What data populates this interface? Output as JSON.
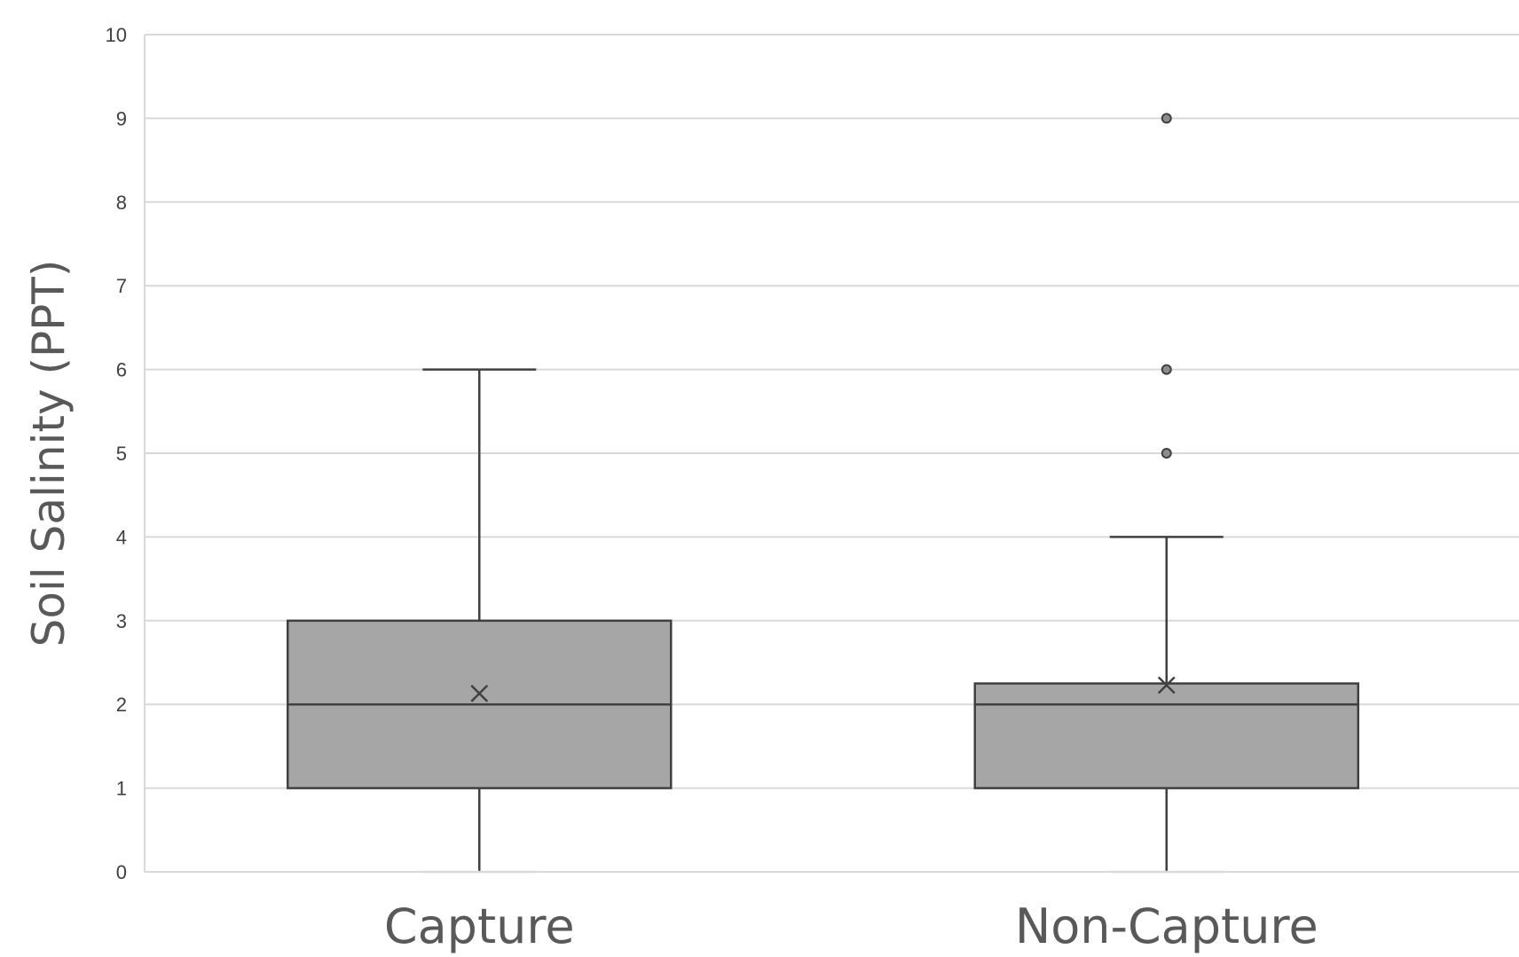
{
  "chart_data": {
    "type": "box",
    "ylabel": "Soil Salinity (PPT)",
    "xlabel": "",
    "ylim": [
      0,
      10
    ],
    "yticks": [
      "0",
      "1",
      "2",
      "3",
      "4",
      "5",
      "6",
      "7",
      "8",
      "9",
      "10"
    ],
    "grid": true,
    "categories": [
      "Capture",
      "Non-Capture"
    ],
    "boxes": [
      {
        "category": "Capture",
        "whisker_low": 0,
        "q1": 1,
        "median": 2,
        "q3": 3,
        "whisker_high": 6,
        "mean": 2.13,
        "outliers": []
      },
      {
        "category": "Non-Capture",
        "whisker_low": 0,
        "q1": 1,
        "median": 2,
        "q3": 2.25,
        "whisker_high": 4,
        "mean": 2.23,
        "outliers": [
          5,
          6,
          9
        ]
      }
    ],
    "colors": {
      "box_fill": "#a6a6a6",
      "box_stroke": "#404040",
      "grid": "#d9d9d9",
      "outlier_fill": "#8c8c8c"
    }
  }
}
